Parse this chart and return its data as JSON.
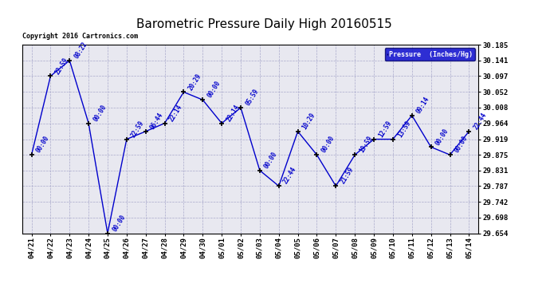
{
  "title": "Barometric Pressure Daily High 20160515",
  "copyright": "Copyright 2016 Cartronics.com",
  "legend_label": "Pressure  (Inches/Hg)",
  "dates": [
    "04/21",
    "04/22",
    "04/23",
    "04/24",
    "04/25",
    "04/26",
    "04/27",
    "04/28",
    "04/29",
    "04/30",
    "05/01",
    "05/02",
    "05/03",
    "05/04",
    "05/05",
    "05/06",
    "05/07",
    "05/08",
    "05/09",
    "05/10",
    "05/11",
    "05/12",
    "05/13",
    "05/14"
  ],
  "values": [
    29.875,
    30.097,
    30.141,
    29.964,
    29.654,
    29.919,
    29.941,
    29.964,
    30.052,
    30.03,
    29.964,
    30.008,
    29.831,
    29.787,
    29.941,
    29.875,
    29.787,
    29.875,
    29.919,
    29.919,
    29.986,
    29.897,
    29.875,
    29.941
  ],
  "annotations": [
    "00:00",
    "22:59",
    "08:22",
    "00:00",
    "00:00",
    "22:59",
    "06:44",
    "22:14",
    "20:29",
    "00:00",
    "22:14",
    "05:59",
    "00:00",
    "22:44",
    "10:29",
    "00:00",
    "21:59",
    "19:59",
    "12:59",
    "13:59",
    "09:14",
    "00:00",
    "00:00",
    "22:44"
  ],
  "yticks": [
    29.654,
    29.698,
    29.742,
    29.787,
    29.831,
    29.875,
    29.919,
    29.964,
    30.008,
    30.052,
    30.097,
    30.141,
    30.185
  ],
  "line_color": "#0000cc",
  "marker_color": "#000000",
  "bg_color": "#ffffff",
  "plot_bg_color": "#e8e8f0",
  "grid_color": "#aaaacc",
  "annotation_color": "#0000cc",
  "legend_bg": "#0000cc",
  "legend_text_color": "#ffffff",
  "title_fontsize": 11,
  "tick_fontsize": 6.5,
  "annotation_fontsize": 5.5,
  "copyright_fontsize": 6
}
